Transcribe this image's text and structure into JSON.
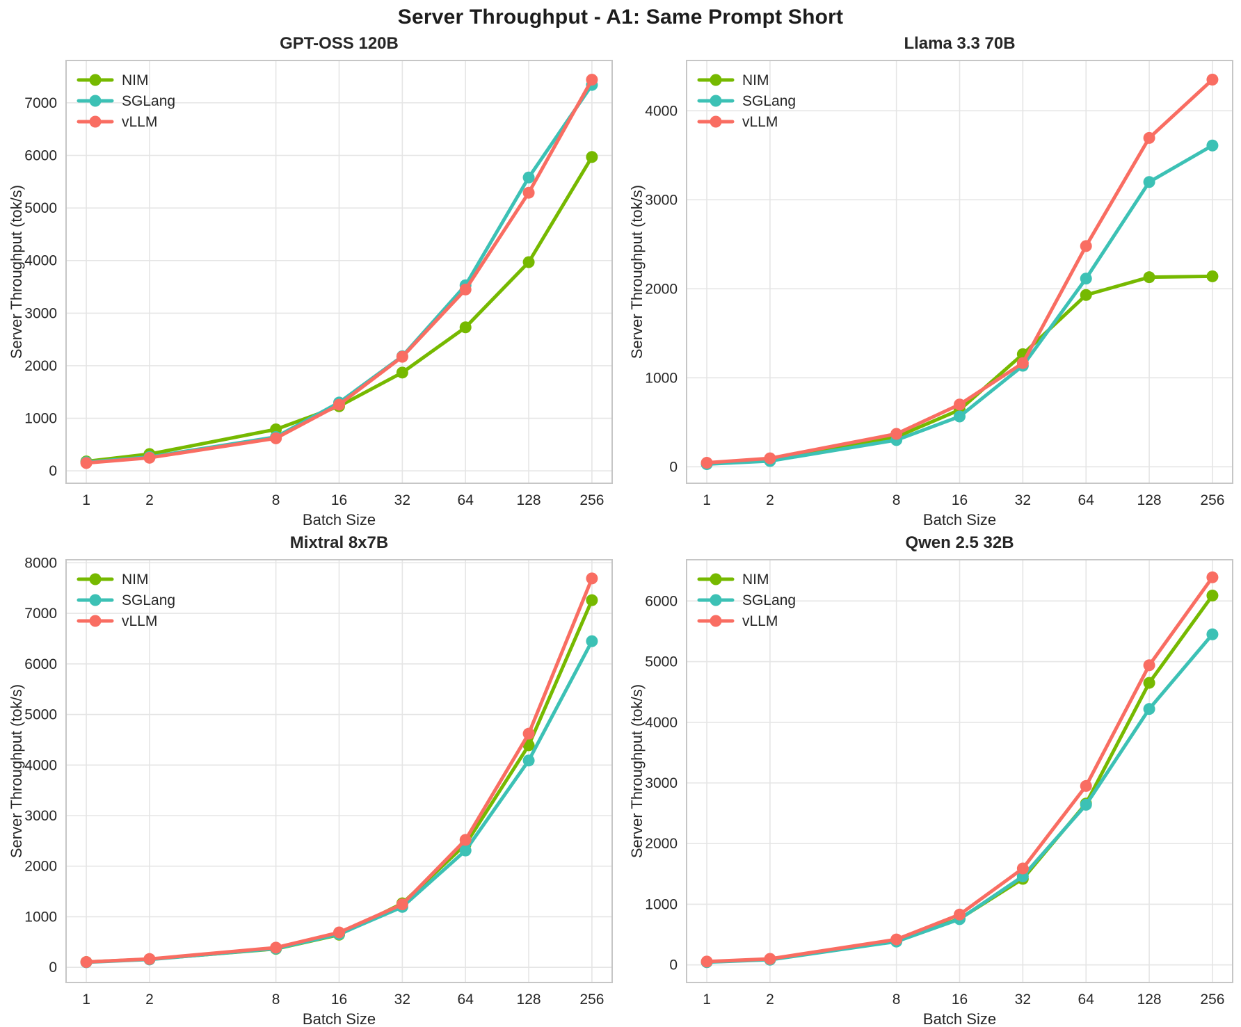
{
  "page": {
    "title": "Server Throughput - A1: Same Prompt Short"
  },
  "palette": {
    "NIM": "#76B900",
    "SGLang": "#3CC1B5",
    "vLLM": "#F96D62"
  },
  "style": {
    "grid_color": "#E5E5E5",
    "spine_color": "#C6C6C6",
    "text_color": "#262626",
    "background": "#FFFFFF"
  },
  "legend": {
    "entries": [
      "NIM",
      "SGLang",
      "vLLM"
    ],
    "position": "upper-left",
    "frame": false
  },
  "chart_data": [
    {
      "type": "line",
      "title": "GPT-OSS 120B",
      "xlabel": "Batch Size",
      "ylabel": "Server Throughput (tok/s)",
      "x_scale": "log2",
      "grid": true,
      "x": [
        1,
        2,
        8,
        16,
        32,
        64,
        128,
        256
      ],
      "ylim": [
        -235,
        7805
      ],
      "yticks": [
        0,
        1000,
        2000,
        3000,
        4000,
        5000,
        6000,
        7000
      ],
      "series": [
        {
          "name": "NIM",
          "values": [
            180,
            320,
            790,
            1230,
            1870,
            2730,
            3970,
            5970
          ]
        },
        {
          "name": "SGLang",
          "values": [
            165,
            265,
            645,
            1300,
            2180,
            3530,
            5580,
            7340
          ]
        },
        {
          "name": "vLLM",
          "values": [
            150,
            250,
            620,
            1260,
            2170,
            3450,
            5290,
            7440
          ]
        }
      ]
    },
    {
      "type": "line",
      "title": "Llama 3.3 70B",
      "xlabel": "Batch Size",
      "ylabel": "Server Throughput (tok/s)",
      "x_scale": "log2",
      "grid": true,
      "x": [
        1,
        2,
        8,
        16,
        32,
        64,
        128,
        256
      ],
      "ylim": [
        -185,
        4565
      ],
      "yticks": [
        0,
        1000,
        2000,
        3000,
        4000
      ],
      "series": [
        {
          "name": "NIM",
          "values": [
            35,
            70,
            335,
            640,
            1265,
            1930,
            2130,
            2140
          ]
        },
        {
          "name": "SGLang",
          "values": [
            30,
            65,
            300,
            565,
            1135,
            2115,
            3200,
            3610
          ]
        },
        {
          "name": "vLLM",
          "values": [
            45,
            95,
            370,
            700,
            1165,
            2480,
            3695,
            4350
          ]
        }
      ]
    },
    {
      "type": "line",
      "title": "Mixtral 8x7B",
      "xlabel": "Batch Size",
      "ylabel": "Server Throughput (tok/s)",
      "x_scale": "log2",
      "grid": true,
      "x": [
        1,
        2,
        8,
        16,
        32,
        64,
        128,
        256
      ],
      "ylim": [
        -300,
        8060
      ],
      "yticks": [
        0,
        1000,
        2000,
        3000,
        4000,
        5000,
        6000,
        7000,
        8000
      ],
      "series": [
        {
          "name": "NIM",
          "values": [
            105,
            160,
            365,
            645,
            1265,
            2430,
            4390,
            7260
          ]
        },
        {
          "name": "SGLang",
          "values": [
            100,
            155,
            370,
            655,
            1195,
            2310,
            4090,
            6450
          ]
        },
        {
          "name": "vLLM",
          "values": [
            105,
            165,
            390,
            690,
            1245,
            2520,
            4620,
            7690
          ]
        }
      ]
    },
    {
      "type": "line",
      "title": "Qwen 2.5 32B",
      "xlabel": "Batch Size",
      "ylabel": "Server Throughput (tok/s)",
      "x_scale": "log2",
      "grid": true,
      "x": [
        1,
        2,
        8,
        16,
        32,
        64,
        128,
        256
      ],
      "ylim": [
        -290,
        6680
      ],
      "yticks": [
        0,
        1000,
        2000,
        3000,
        4000,
        5000,
        6000
      ],
      "series": [
        {
          "name": "NIM",
          "values": [
            50,
            90,
            400,
            760,
            1420,
            2660,
            4650,
            6090
          ]
        },
        {
          "name": "SGLang",
          "values": [
            45,
            85,
            385,
            755,
            1460,
            2640,
            4220,
            5450
          ]
        },
        {
          "name": "vLLM",
          "values": [
            55,
            100,
            420,
            830,
            1590,
            2950,
            4940,
            6390
          ]
        }
      ]
    }
  ]
}
